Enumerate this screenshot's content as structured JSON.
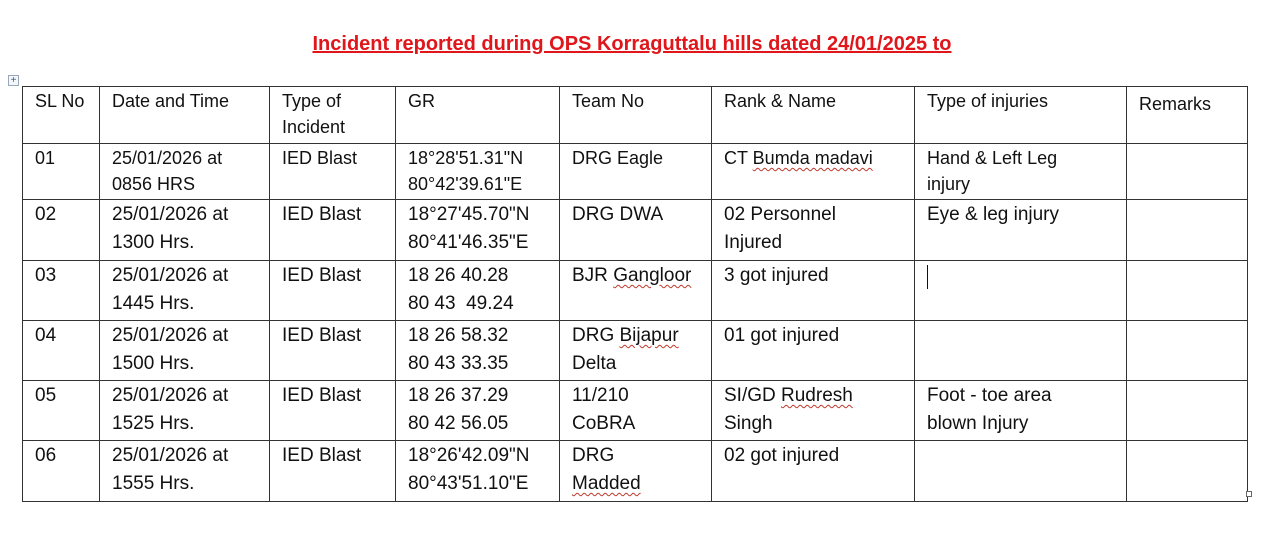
{
  "title": "Incident reported during OPS Korraguttalu hills dated 24/01/2025 to",
  "icons": {
    "table_move": "move-handle-icon",
    "table_resize": "resize-handle-icon"
  },
  "colors": {
    "title": "#e0161b",
    "spellcheck": "#c0392b"
  },
  "headers": {
    "sl_no": "SL No",
    "date_time": "Date and Time",
    "type_line1": "Type of",
    "type_line2": "Incident",
    "gr": "GR",
    "team_no": "Team No",
    "rank_name": "Rank & Name",
    "injuries": "Type of injuries",
    "remarks": "Remarks"
  },
  "rows": [
    {
      "sl": "01",
      "date_line1": "25/01/2026 at",
      "date_line2": "0856 HRS",
      "type": "IED Blast",
      "gr_line1": "18°28'51.31\"N",
      "gr_line2": "80°42'39.61\"E",
      "team_line1": "DRG Eagle",
      "team_line2": "",
      "rank_prefix": "CT ",
      "rank_name": "Bumda madavi",
      "rank_line2": "",
      "injury_line1": "Hand & Left Leg",
      "injury_line2": "injury",
      "remarks": ""
    },
    {
      "sl": "02",
      "date_line1": "25/01/2026 at",
      "date_line2": "1300 Hrs.",
      "type": "IED Blast",
      "gr_line1": "18°27'45.70\"N",
      "gr_line2": "80°41'46.35\"E",
      "team_line1": "DRG DWA",
      "team_line2": "",
      "rank_line1": "02 Personnel",
      "rank_line2": "Injured",
      "injury_line1": "Eye & leg injury",
      "injury_line2": "",
      "remarks": ""
    },
    {
      "sl": "03",
      "date_line1": "25/01/2026 at",
      "date_line2": "1445 Hrs.",
      "type": "IED Blast",
      "gr_line1": "18 26 40.28",
      "gr_line2": "80 43  49.24",
      "team_prefix": "BJR ",
      "team_name": "Gangloor",
      "rank_line1": "3 got injured",
      "rank_line2": "",
      "injury_line1": "",
      "injury_line2": "",
      "remarks": ""
    },
    {
      "sl": "04",
      "date_line1": "25/01/2026 at",
      "date_line2": "1500 Hrs.",
      "type": "IED Blast",
      "gr_line1": "18 26 58.32",
      "gr_line2": "80 43 33.35",
      "team_prefix": "DRG ",
      "team_name": "Bijapur",
      "team_line2": "Delta",
      "rank_line1": "01 got injured",
      "rank_line2": "",
      "injury_line1": "",
      "injury_line2": "",
      "remarks": ""
    },
    {
      "sl": "05",
      "date_line1": "25/01/2026 at",
      "date_line2": "1525 Hrs.",
      "type": "IED Blast",
      "gr_line1": "18 26 37.29",
      "gr_line2": "80 42 56.05",
      "team_line1": "11/210",
      "team_line2": "CoBRA",
      "rank_prefix": "SI/GD ",
      "rank_name": "Rudresh",
      "rank_line2": "Singh",
      "injury_line1": "Foot - toe area",
      "injury_line2": "blown Injury",
      "remarks": ""
    },
    {
      "sl": "06",
      "date_line1": "25/01/2026 at",
      "date_line2": "1555 Hrs.",
      "type": "IED Blast",
      "gr_line1": "18°26'42.09\"N",
      "gr_line2": "80°43'51.10\"E",
      "team_line1": "DRG",
      "team_name": "Madded",
      "rank_line1": "02 got injured",
      "rank_line2": "",
      "injury_line1": "",
      "injury_line2": "",
      "remarks": ""
    }
  ]
}
